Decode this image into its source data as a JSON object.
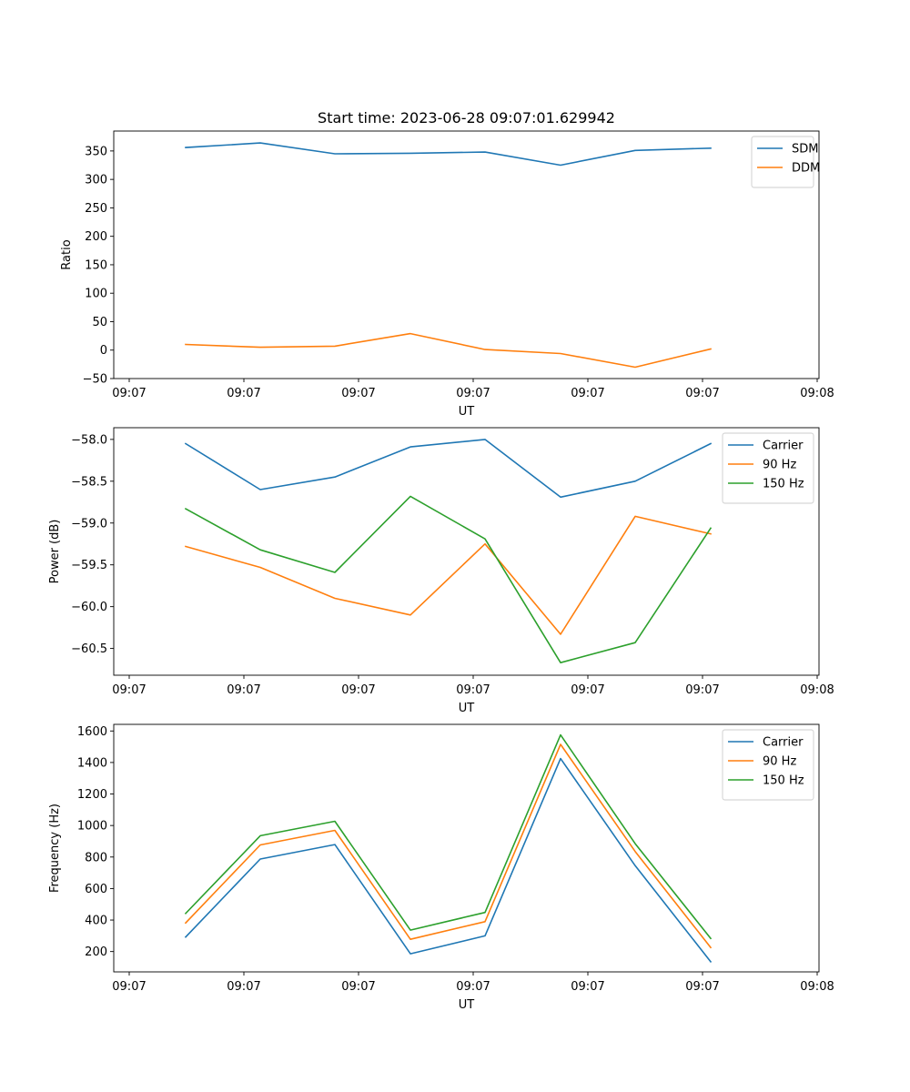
{
  "figure": {
    "title": "Start time: 2023-06-28 09:07:01.629942"
  },
  "chart_data": [
    {
      "type": "line",
      "title": "Start time: 2023-06-28 09:07:01.629942",
      "xlabel": "UT",
      "ylabel": "Ratio",
      "x_tick_labels": [
        "09:07",
        "09:07",
        "09:07",
        "09:07",
        "09:07",
        "09:07",
        "09:08"
      ],
      "y_ticks": [
        -50,
        0,
        50,
        100,
        150,
        200,
        250,
        300,
        350
      ],
      "ylim": [
        -50,
        385
      ],
      "legend_position": "top-right",
      "series": [
        {
          "name": "SDM",
          "color": "#1f77b4",
          "values": [
            356,
            364,
            345,
            346,
            348,
            325,
            351,
            355
          ]
        },
        {
          "name": "DDM",
          "color": "#ff7f0e",
          "values": [
            10,
            5,
            7,
            29,
            1,
            -6,
            -30,
            2
          ]
        }
      ]
    },
    {
      "type": "line",
      "xlabel": "UT",
      "ylabel": "Power (dB)",
      "x_tick_labels": [
        "09:07",
        "09:07",
        "09:07",
        "09:07",
        "09:07",
        "09:07",
        "09:08"
      ],
      "y_ticks": [
        -60.5,
        -60.0,
        -59.5,
        -59.0,
        -58.5,
        -58.0
      ],
      "y_tick_labels": [
        "−60.5",
        "−60.0",
        "−59.5",
        "−59.0",
        "−58.5",
        "−58.0"
      ],
      "ylim": [
        -60.82,
        -57.86
      ],
      "legend_position": "top-right",
      "series": [
        {
          "name": "Carrier",
          "color": "#1f77b4",
          "values": [
            -58.05,
            -58.6,
            -58.45,
            -58.09,
            -58.0,
            -58.69,
            -58.5,
            -58.05
          ]
        },
        {
          "name": "90 Hz",
          "color": "#ff7f0e",
          "values": [
            -59.28,
            -59.53,
            -59.9,
            -60.1,
            -59.25,
            -60.33,
            -58.92,
            -59.13
          ]
        },
        {
          "name": "150 Hz",
          "color": "#2ca02c",
          "values": [
            -58.83,
            -59.32,
            -59.59,
            -58.68,
            -59.19,
            -60.67,
            -60.43,
            -59.06
          ]
        }
      ]
    },
    {
      "type": "line",
      "xlabel": "UT",
      "ylabel": "Frequency (Hz)",
      "x_tick_labels": [
        "09:07",
        "09:07",
        "09:07",
        "09:07",
        "09:07",
        "09:07",
        "09:08"
      ],
      "y_ticks": [
        200,
        400,
        600,
        800,
        1000,
        1200,
        1400,
        1600
      ],
      "ylim": [
        71,
        1642
      ],
      "legend_position": "top-right",
      "series": [
        {
          "name": "Carrier",
          "color": "#1f77b4",
          "values": [
            292,
            787,
            879,
            186,
            300,
            1425,
            745,
            135
          ]
        },
        {
          "name": "90 Hz",
          "color": "#ff7f0e",
          "values": [
            382,
            877,
            969,
            278,
            390,
            1515,
            835,
            225
          ]
        },
        {
          "name": "150 Hz",
          "color": "#2ca02c",
          "values": [
            442,
            935,
            1027,
            336,
            448,
            1575,
            885,
            283
          ]
        }
      ]
    }
  ]
}
